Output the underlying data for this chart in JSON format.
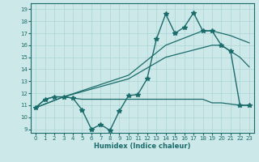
{
  "xlabel": "Humidex (Indice chaleur)",
  "background_color": "#cde8e8",
  "line_color": "#1a6b6b",
  "grid_color": "#aad4d4",
  "xlim": [
    -0.5,
    23.5
  ],
  "ylim": [
    8.7,
    19.5
  ],
  "xticks": [
    0,
    1,
    2,
    3,
    4,
    5,
    6,
    7,
    8,
    9,
    10,
    11,
    12,
    13,
    14,
    15,
    16,
    17,
    18,
    19,
    20,
    21,
    22,
    23
  ],
  "yticks": [
    9,
    10,
    11,
    12,
    13,
    14,
    15,
    16,
    17,
    18,
    19
  ],
  "series": [
    {
      "x": [
        0,
        1,
        2,
        3,
        4,
        5,
        6,
        7,
        8,
        9,
        10,
        11,
        12,
        13,
        14,
        15,
        16,
        17,
        18,
        19,
        20,
        21,
        22,
        23
      ],
      "y": [
        10.8,
        11.5,
        11.7,
        11.7,
        11.6,
        10.6,
        9.0,
        9.4,
        8.9,
        10.5,
        11.8,
        11.9,
        13.2,
        16.5,
        18.6,
        17.0,
        17.5,
        18.7,
        17.2,
        17.2,
        16.0,
        15.5,
        11.0,
        11.0
      ],
      "marker": "*",
      "markersize": 4,
      "linewidth": 1.0
    },
    {
      "x": [
        0,
        1,
        2,
        3,
        4,
        5,
        10,
        11,
        12,
        13,
        14,
        15,
        16,
        17,
        18,
        19,
        20,
        21,
        22,
        23
      ],
      "y": [
        10.8,
        11.5,
        11.7,
        11.7,
        11.6,
        11.5,
        11.5,
        11.5,
        11.5,
        11.5,
        11.5,
        11.5,
        11.5,
        11.5,
        11.5,
        11.2,
        11.2,
        11.1,
        11.0,
        11.0
      ],
      "marker": null,
      "markersize": 0,
      "linewidth": 0.9
    },
    {
      "x": [
        0,
        3,
        10,
        14,
        19,
        20,
        21,
        22,
        23
      ],
      "y": [
        10.8,
        11.7,
        13.2,
        15.0,
        16.0,
        16.0,
        15.5,
        15.0,
        14.2
      ],
      "marker": null,
      "markersize": 0,
      "linewidth": 0.9
    },
    {
      "x": [
        0,
        3,
        10,
        14,
        18,
        19,
        20,
        21,
        22,
        23
      ],
      "y": [
        10.8,
        11.7,
        13.5,
        16.0,
        17.2,
        17.2,
        17.0,
        16.8,
        16.5,
        16.2
      ],
      "marker": null,
      "markersize": 0,
      "linewidth": 0.9
    }
  ]
}
